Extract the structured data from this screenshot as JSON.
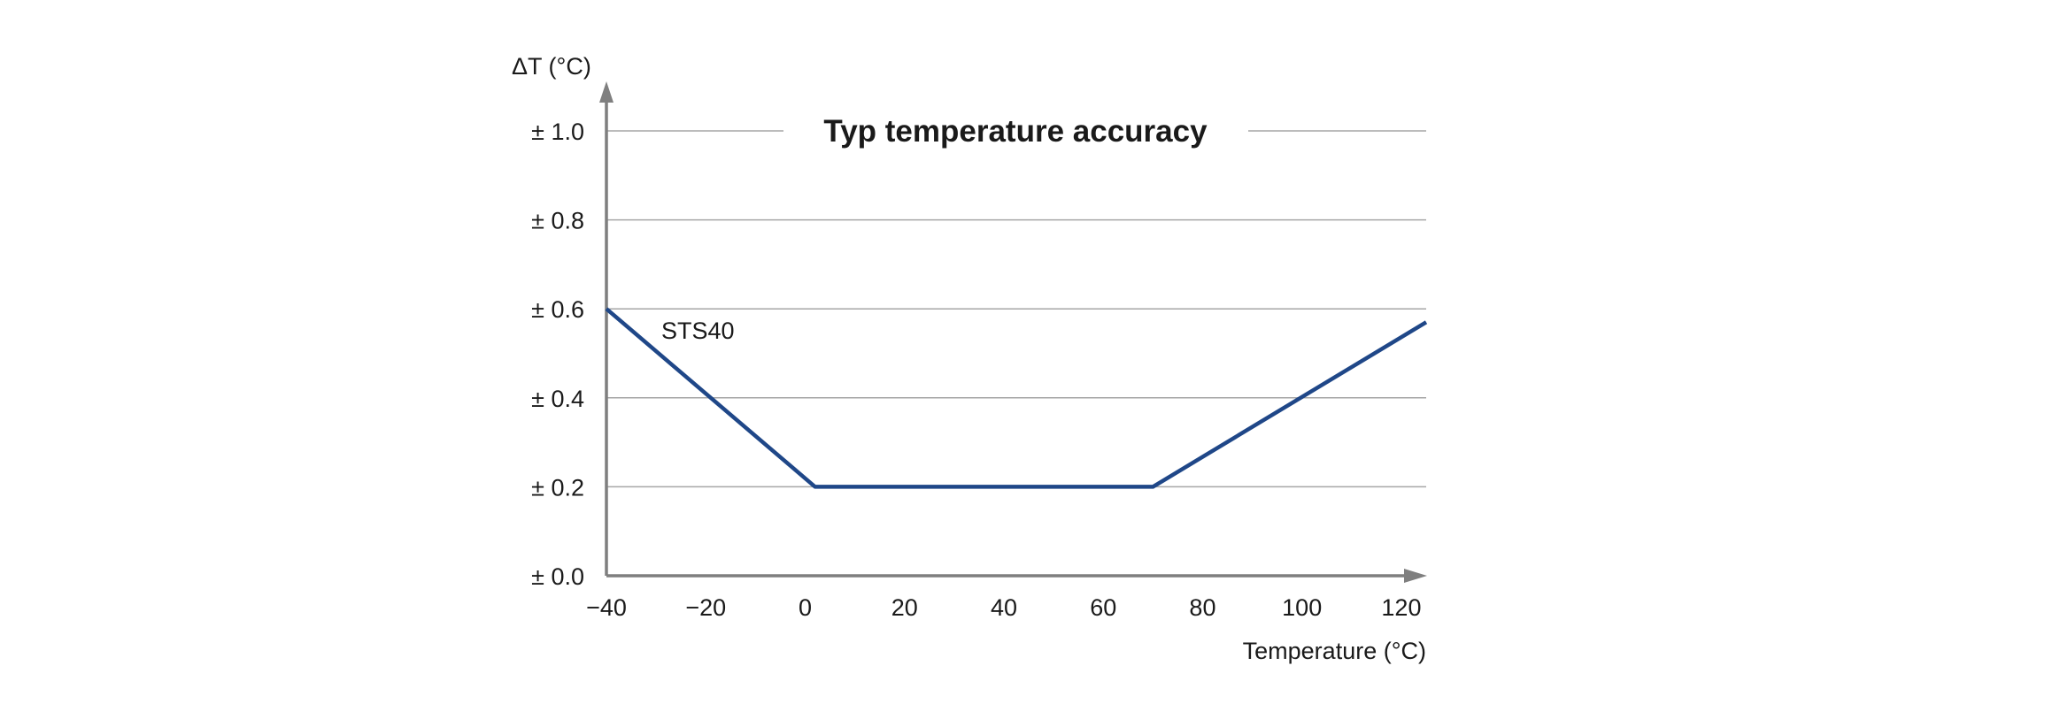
{
  "chart_data": {
    "type": "line",
    "title": "Typ temperature accuracy",
    "xlabel": "Temperature (°C)",
    "ylabel": "ΔT (°C)",
    "xlim": [
      -40,
      125
    ],
    "ylim": [
      0,
      1.0
    ],
    "x_ticks": [
      -40,
      -20,
      0,
      20,
      40,
      60,
      80,
      100,
      120
    ],
    "x_tick_labels": [
      "−40",
      "−20",
      "0",
      "20",
      "40",
      "60",
      "80",
      "100",
      "120"
    ],
    "y_ticks": [
      0,
      0.2,
      0.4,
      0.6,
      0.8,
      1.0
    ],
    "y_tick_labels": [
      "± 0.0",
      "± 0.2",
      "± 0.4",
      "± 0.6",
      "± 0.8",
      "± 1.0"
    ],
    "grid": "horizontal",
    "series": [
      {
        "name": "STS40",
        "color": "#1f4788",
        "x": [
          -40,
          2,
          70,
          125
        ],
        "y": [
          0.6,
          0.2,
          0.2,
          0.57
        ]
      }
    ],
    "colors": {
      "axis": "#7f7f7f",
      "grid": "#a6a6a6",
      "line": "#1f4788"
    }
  }
}
